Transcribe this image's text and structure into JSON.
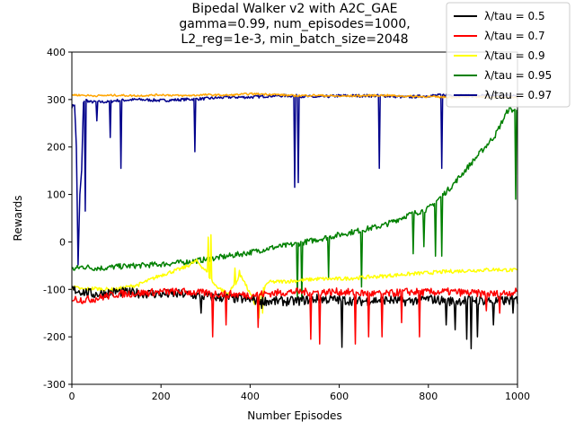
{
  "chart_data": {
    "type": "line",
    "title_lines": [
      "Bipedal Walker v2 with A2C_GAE",
      "gamma=0.99, num_episodes=1000,",
      "L2_reg=1e-3, min_batch_size=2048"
    ],
    "xlabel": "Number Episodes",
    "ylabel": "Rewards",
    "xlim": [
      0,
      1000
    ],
    "ylim": [
      -300,
      400
    ],
    "xticks": [
      0,
      200,
      400,
      600,
      800,
      1000
    ],
    "yticks": [
      -300,
      -200,
      -100,
      0,
      100,
      200,
      300,
      400
    ],
    "grid": false,
    "legend_position": "top-right",
    "series": [
      {
        "name": "λ/tau = 0.5",
        "color": "#000000",
        "x": [
          0,
          25,
          50,
          75,
          100,
          150,
          200,
          250,
          300,
          350,
          400,
          450,
          500,
          550,
          600,
          650,
          700,
          750,
          800,
          850,
          900,
          950,
          1000
        ],
        "y": [
          -100,
          -105,
          -110,
          -108,
          -105,
          -108,
          -110,
          -110,
          -115,
          -118,
          -122,
          -125,
          -125,
          -120,
          -122,
          -125,
          -122,
          -125,
          -120,
          -125,
          -122,
          -125,
          -122
        ],
        "spikes": [
          [
            290,
            -150
          ],
          [
            425,
            -140
          ],
          [
            605,
            -222
          ],
          [
            840,
            -175
          ],
          [
            860,
            -185
          ],
          [
            885,
            -205
          ],
          [
            895,
            -225
          ],
          [
            910,
            -200
          ],
          [
            945,
            -175
          ],
          [
            990,
            -150
          ]
        ]
      },
      {
        "name": "λ/tau = 0.7",
        "color": "#ff0000",
        "x": [
          0,
          25,
          50,
          75,
          100,
          150,
          200,
          250,
          300,
          350,
          400,
          450,
          500,
          550,
          600,
          650,
          700,
          750,
          800,
          850,
          900,
          950,
          1000
        ],
        "y": [
          -120,
          -122,
          -120,
          -115,
          -110,
          -108,
          -105,
          -105,
          -108,
          -110,
          -112,
          -108,
          -105,
          -106,
          -105,
          -108,
          -110,
          -105,
          -106,
          -105,
          -108,
          -110,
          -105
        ],
        "spikes": [
          [
            315,
            -200
          ],
          [
            345,
            -175
          ],
          [
            418,
            -180
          ],
          [
            535,
            -205
          ],
          [
            555,
            -215
          ],
          [
            635,
            -215
          ],
          [
            665,
            -200
          ],
          [
            695,
            -200
          ],
          [
            740,
            -170
          ],
          [
            780,
            -200
          ],
          [
            930,
            -145
          ],
          [
            960,
            -150
          ]
        ]
      },
      {
        "name": "λ/tau = 0.9",
        "color": "#ffff00",
        "x": [
          0,
          25,
          50,
          75,
          100,
          150,
          200,
          250,
          280,
          300,
          320,
          350,
          380,
          410,
          440,
          500,
          550,
          600,
          650,
          700,
          750,
          800,
          850,
          900,
          950,
          1000
        ],
        "y": [
          -95,
          -100,
          -98,
          -100,
          -100,
          -90,
          -70,
          -55,
          -40,
          -60,
          -90,
          -110,
          -70,
          -130,
          -85,
          -82,
          -78,
          -78,
          -75,
          -72,
          -68,
          -65,
          -62,
          -60,
          -58,
          -60
        ],
        "spikes": [
          [
            305,
            10
          ],
          [
            312,
            15
          ],
          [
            365,
            -55
          ],
          [
            375,
            -60
          ],
          [
            420,
            -160
          ],
          [
            428,
            -150
          ]
        ]
      },
      {
        "name": "λ/tau = 0.95",
        "color": "#008000",
        "x": [
          0,
          25,
          50,
          75,
          100,
          150,
          200,
          250,
          300,
          350,
          400,
          450,
          500,
          550,
          600,
          650,
          700,
          750,
          800,
          850,
          900,
          950,
          980,
          1000
        ],
        "y": [
          -58,
          -52,
          -55,
          -55,
          -52,
          -50,
          -47,
          -43,
          -37,
          -30,
          -22,
          -12,
          -5,
          5,
          15,
          25,
          35,
          55,
          70,
          115,
          170,
          225,
          280,
          275
        ],
        "spikes": [
          [
            505,
            -120
          ],
          [
            515,
            -125
          ],
          [
            575,
            -75
          ],
          [
            650,
            -95
          ],
          [
            765,
            -25
          ],
          [
            790,
            -10
          ],
          [
            815,
            -30
          ],
          [
            830,
            -30
          ],
          [
            995,
            90
          ]
        ]
      },
      {
        "name": "λ/tau = 0.97",
        "color": "#00008b",
        "x": [
          0,
          6,
          10,
          14,
          18,
          22,
          26,
          30,
          40,
          60,
          80,
          100,
          150,
          200,
          250,
          300,
          350,
          400,
          450,
          500,
          550,
          600,
          650,
          700,
          750,
          800,
          850,
          900,
          950,
          1000
        ],
        "y": [
          285,
          290,
          200,
          -50,
          100,
          150,
          295,
          300,
          295,
          295,
          295,
          298,
          300,
          298,
          300,
          302,
          305,
          305,
          308,
          308,
          305,
          308,
          308,
          308,
          305,
          308,
          310,
          308,
          308,
          308
        ],
        "spikes": [
          [
            30,
            65
          ],
          [
            55,
            255
          ],
          [
            85,
            220
          ],
          [
            110,
            155
          ],
          [
            275,
            190
          ],
          [
            500,
            115
          ],
          [
            508,
            125
          ],
          [
            690,
            155
          ],
          [
            830,
            155
          ]
        ]
      },
      {
        "name": "",
        "color": "#ffa500",
        "x": [
          0,
          50,
          100,
          150,
          200,
          250,
          300,
          350,
          400,
          450,
          500,
          550,
          600,
          650,
          700,
          750,
          800,
          850,
          900,
          950,
          1000
        ],
        "y": [
          310,
          308,
          309,
          308,
          310,
          308,
          310,
          309,
          312,
          311,
          308,
          309,
          307,
          308,
          309,
          307,
          306,
          305,
          306,
          305,
          305
        ],
        "spikes": []
      }
    ]
  }
}
